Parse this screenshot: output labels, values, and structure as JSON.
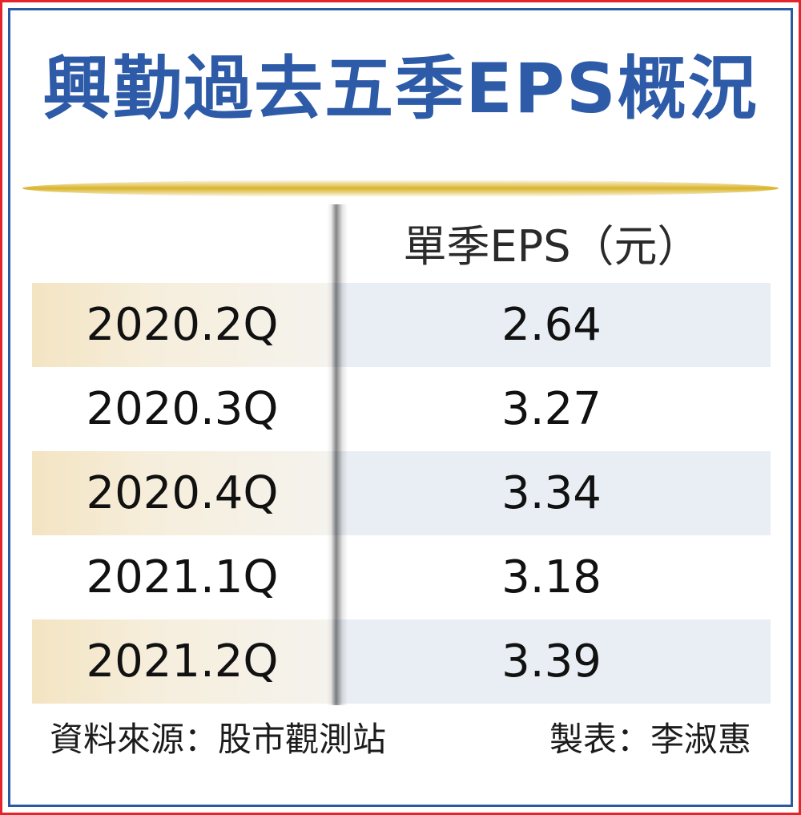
{
  "title": "興勤過去五季EPS概況",
  "chart_data": {
    "type": "table",
    "title": "興勤過去五季EPS概況",
    "column_header": "單季EPS（元）",
    "categories": [
      "2020.2Q",
      "2020.3Q",
      "2020.4Q",
      "2021.1Q",
      "2021.2Q"
    ],
    "values": [
      2.64,
      3.27,
      3.34,
      3.18,
      3.39
    ],
    "rows": [
      {
        "label": "2020.2Q",
        "value": "2.64"
      },
      {
        "label": "2020.3Q",
        "value": "3.27"
      },
      {
        "label": "2020.4Q",
        "value": "3.34"
      },
      {
        "label": "2021.1Q",
        "value": "3.18"
      },
      {
        "label": "2021.2Q",
        "value": "3.39"
      }
    ]
  },
  "footer": {
    "source": "資料來源：股市觀測站",
    "author": "製表：李淑惠"
  },
  "colors": {
    "title": "#2d5ba8",
    "frame_outer": "#e3242b",
    "frame_inner": "#2c5aa0",
    "accent_rule": "#d9b42a"
  }
}
